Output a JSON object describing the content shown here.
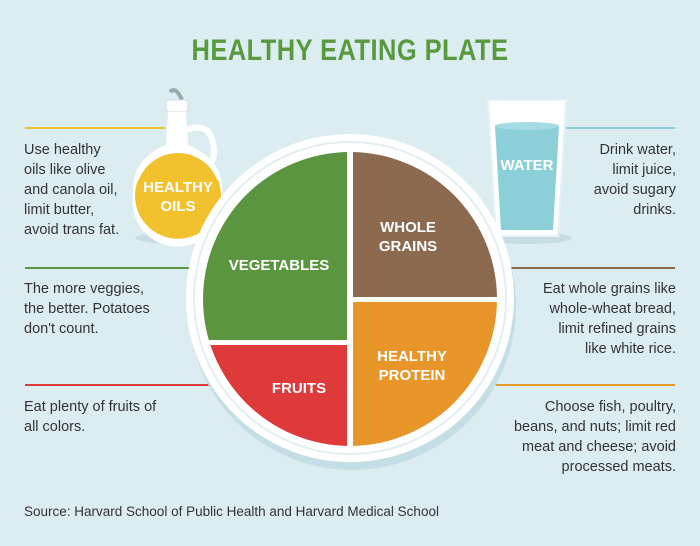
{
  "title": "HEALTHY EATING PLATE",
  "sections": {
    "oils": {
      "label_line1": "HEALTHY",
      "label_line2": "OILS",
      "note": "Use healthy\noils like olive\nand canola oil,\nlimit butter,\navoid trans fat.",
      "color": "#f2c12e"
    },
    "vegetables": {
      "label": "VEGETABLES",
      "note": "The more veggies,\nthe better. Potatoes\ndon't count.",
      "color": "#5b9540"
    },
    "fruits": {
      "label": "FRUITS",
      "note": "Eat plenty of fruits of\nall colors.",
      "color": "#de3a3a"
    },
    "water": {
      "label": "WATER",
      "note": "Drink water,\nlimit juice,\navoid sugary\ndrinks.",
      "color": "#8ccfd8"
    },
    "grains": {
      "label_line1": "WHOLE",
      "label_line2": "GRAINS",
      "note": "Eat whole grains like\nwhole-wheat bread,\nlimit refined grains\nlike white rice.",
      "color": "#8b6a50"
    },
    "protein": {
      "label_line1": "HEALTHY",
      "label_line2": "PROTEIN",
      "note": "Choose fish, poultry,\nbeans, and nuts; limit red\nmeat and cheese; avoid\nprocessed meats.",
      "color": "#e8962a"
    }
  },
  "source": "Source: Harvard School of Public Health and Harvard Medical School"
}
